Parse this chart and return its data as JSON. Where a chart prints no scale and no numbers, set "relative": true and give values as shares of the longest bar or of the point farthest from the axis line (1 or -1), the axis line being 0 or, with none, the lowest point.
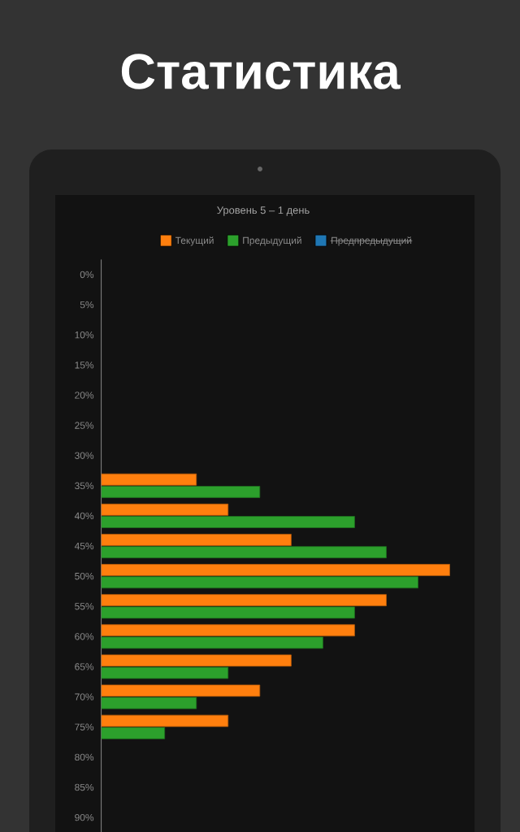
{
  "chart_data": {
    "type": "bar",
    "orientation": "horizontal",
    "relative": true,
    "title": "Статистика",
    "subtitle": "Уровень 5 – 1 день",
    "legend": "top",
    "categories": [
      "0%",
      "5%",
      "10%",
      "15%",
      "20%",
      "25%",
      "30%",
      "35%",
      "40%",
      "45%",
      "50%",
      "55%",
      "60%",
      "65%",
      "70%",
      "75%",
      "80%",
      "85%",
      "90%"
    ],
    "series": [
      {
        "name": "Текущий",
        "color": "#ff7f0e",
        "values": [
          null,
          null,
          null,
          null,
          null,
          null,
          null,
          0.273,
          0.364,
          0.545,
          1,
          0.818,
          0.727,
          0.545,
          0.455,
          0.364,
          null,
          null,
          null
        ]
      },
      {
        "name": "Предыдущий",
        "color": "#2ca02c",
        "values": [
          null,
          null,
          null,
          null,
          null,
          null,
          null,
          0.455,
          0.727,
          0.818,
          0.909,
          0.727,
          0.636,
          0.364,
          0.273,
          0.182,
          null,
          null,
          null
        ]
      },
      {
        "name": "Предпредыдущий",
        "color": "#1f77b4",
        "values": [
          null,
          null,
          null,
          null,
          null,
          null,
          null,
          null,
          null,
          null,
          null,
          null,
          null,
          null,
          null,
          null,
          null,
          null,
          null
        ]
      }
    ]
  }
}
